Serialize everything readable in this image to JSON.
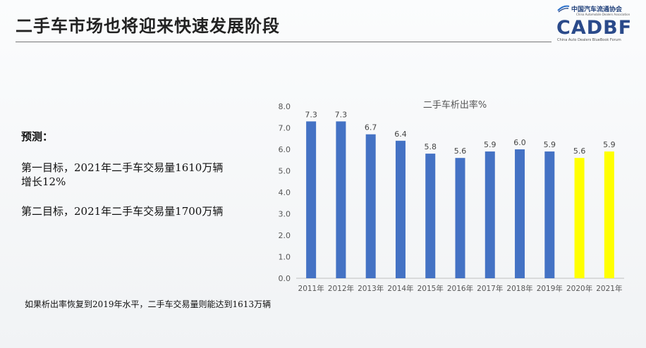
{
  "slide": {
    "title": "二手车市场也将迎来快速发展阶段"
  },
  "logo": {
    "cn_name": "中国汽车流通协会",
    "en_name": "China Automobile Dealers Association",
    "acronym": "CADBF",
    "en_sub": "China Auto Dealers BlueBook Forum",
    "color": "#2a4a8a"
  },
  "left_text": {
    "prediction_label": "预测：",
    "goal1_line1": "第一目标，2021年二手车交易量1610万辆",
    "goal1_line2": "增长12%",
    "goal2": "第二目标，2021年二手车交易量1700万辆"
  },
  "footnote": "如果析出率恢复到2019年水平，二手车交易量则能达到1613万辆",
  "chart_data": {
    "type": "bar",
    "title": "二手车析出率%",
    "categories": [
      "2011年",
      "2012年",
      "2013年",
      "2014年",
      "2015年",
      "2016年",
      "2017年",
      "2018年",
      "2019年",
      "2020年",
      "2021年"
    ],
    "values": [
      7.3,
      7.3,
      6.7,
      6.4,
      5.8,
      5.6,
      5.9,
      6.0,
      5.9,
      5.6,
      5.9
    ],
    "value_labels": [
      "7.3",
      "7.3",
      "6.7",
      "6.4",
      "5.8",
      "5.6",
      "5.9",
      "6.0",
      "5.9",
      "5.6",
      "5.9"
    ],
    "bar_colors": [
      "#4472c4",
      "#4472c4",
      "#4472c4",
      "#4472c4",
      "#4472c4",
      "#4472c4",
      "#4472c4",
      "#4472c4",
      "#4472c4",
      "#ffff00",
      "#ffff00"
    ],
    "yticks": [
      "0.0",
      "1.0",
      "2.0",
      "3.0",
      "4.0",
      "5.0",
      "6.0",
      "7.0",
      "8.0"
    ],
    "ylim": [
      0,
      8
    ],
    "grid": false,
    "legend": "none"
  }
}
